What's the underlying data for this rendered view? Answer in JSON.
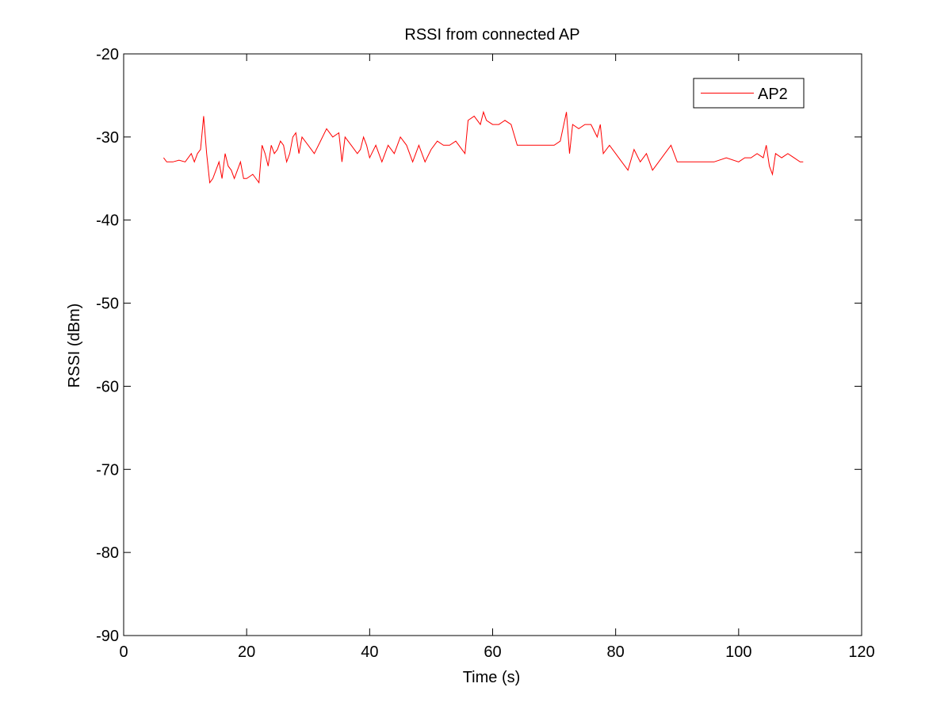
{
  "chart_data": {
    "type": "line",
    "title": "RSSI from connected AP",
    "xlabel": "Time (s)",
    "ylabel": "RSSI (dBm)",
    "xlim": [
      0,
      120
    ],
    "ylim": [
      -90,
      -20
    ],
    "xticks": [
      0,
      20,
      40,
      60,
      80,
      100,
      120
    ],
    "yticks": [
      -90,
      -80,
      -70,
      -60,
      -50,
      -40,
      -30,
      -20
    ],
    "grid": false,
    "legend_position": "top-right",
    "series": [
      {
        "name": "AP2",
        "color": "#ff0000",
        "x": [
          6.5,
          7,
          8,
          9,
          10,
          11,
          11.5,
          12,
          12.5,
          13,
          13.5,
          14,
          14.5,
          15,
          15.5,
          16,
          16.5,
          17,
          17.5,
          18,
          18.5,
          19,
          19.5,
          20,
          21,
          22,
          22.5,
          23,
          23.5,
          24,
          24.5,
          25,
          25.5,
          26,
          26.5,
          27,
          27.5,
          28,
          28.5,
          29,
          30,
          31,
          32,
          33,
          34,
          35,
          35.5,
          36,
          37,
          38,
          38.5,
          39,
          39.5,
          40,
          41,
          42,
          43,
          44,
          45,
          46,
          47,
          47.5,
          48,
          48.5,
          49,
          50,
          51,
          52,
          53,
          54,
          55,
          55.5,
          56,
          57,
          58,
          58.5,
          59,
          60,
          61,
          62,
          63,
          64,
          65,
          66,
          67,
          68,
          69,
          70,
          71,
          72,
          72.5,
          73,
          74,
          75,
          76,
          77,
          77.5,
          78,
          79,
          80,
          81,
          82,
          83,
          84,
          85,
          86,
          87,
          88,
          89,
          90,
          92,
          94,
          96,
          98,
          100,
          101,
          102,
          103,
          104,
          104.5,
          105,
          105.5,
          106,
          107,
          108,
          109,
          110,
          110.5
        ],
        "y": [
          -32.5,
          -33,
          -33,
          -32.8,
          -33,
          -32,
          -33,
          -32,
          -31.5,
          -27.5,
          -32,
          -35.5,
          -35,
          -34,
          -33,
          -35,
          -32,
          -33.5,
          -34,
          -35,
          -34,
          -33,
          -35,
          -35,
          -34.5,
          -35.5,
          -31,
          -32,
          -33.5,
          -31,
          -32,
          -31.5,
          -30.5,
          -31,
          -33,
          -32,
          -30,
          -29.5,
          -32,
          -30,
          -31,
          -32,
          -30.5,
          -29,
          -30,
          -29.5,
          -33,
          -30,
          -31,
          -32,
          -31.5,
          -30,
          -31,
          -32.5,
          -31,
          -33,
          -31,
          -32,
          -30,
          -31,
          -33,
          -32,
          -31,
          -32,
          -33,
          -31.5,
          -30.5,
          -31,
          -31,
          -30.5,
          -31.5,
          -32,
          -28,
          -27.5,
          -28.5,
          -27,
          -28,
          -28.5,
          -28.5,
          -28,
          -28.5,
          -31,
          -31,
          -31,
          -31,
          -31,
          -31,
          -31,
          -30.5,
          -27,
          -32,
          -28.5,
          -29,
          -28.5,
          -28.5,
          -30,
          -28.5,
          -32,
          -31,
          -32,
          -33,
          -34,
          -31.5,
          -33,
          -32,
          -34,
          -33,
          -32,
          -31,
          -33,
          -33,
          -33,
          -33,
          -32.5,
          -33,
          -32.5,
          -32.5,
          -32,
          -32.5,
          -31,
          -33.5,
          -34.5,
          -32,
          -32.5,
          -32,
          -32.5,
          -33,
          -33
        ]
      }
    ]
  }
}
